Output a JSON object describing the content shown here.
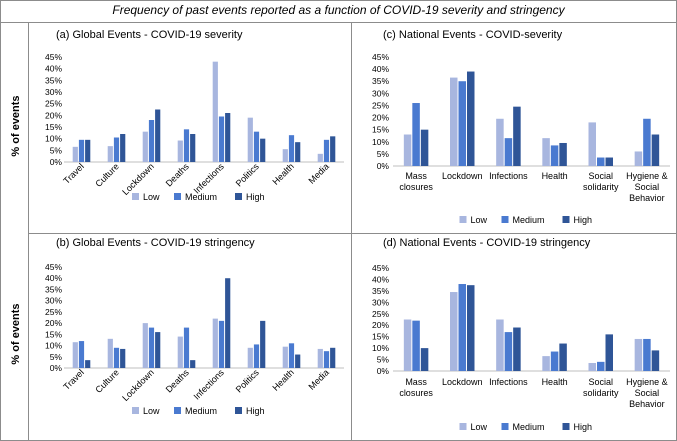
{
  "figure_title": "Frequency of past events reported as a function of COVID-19 severity and stringency",
  "y_axis_label": "% of events",
  "legend": [
    "Low",
    "Medium",
    "High"
  ],
  "colors": {
    "low": "#a8b6df",
    "medium": "#4a7ad0",
    "high": "#2f5597",
    "axis": "#bfbfbf",
    "frame": "#8c8c8c"
  },
  "chart_data": [
    {
      "id": "a",
      "type": "bar",
      "title": "(a)   Global Events - COVID-19 severity",
      "ylabel": "% of events",
      "ylim": [
        0,
        45
      ],
      "yticks": [
        "0%",
        "5%",
        "10%",
        "15%",
        "20%",
        "25%",
        "30%",
        "35%",
        "40%",
        "45%"
      ],
      "categories": [
        "Travel",
        "Culture",
        "Lockdown",
        "Deaths",
        "Infections",
        "Politics",
        "Health",
        "Media"
      ],
      "series": [
        {
          "name": "Low",
          "values": [
            6.5,
            6.8,
            13,
            9.2,
            43,
            19,
            5.5,
            3.5
          ]
        },
        {
          "name": "Medium",
          "values": [
            9.5,
            10.5,
            18,
            14,
            19.5,
            13,
            11.5,
            9.5
          ]
        },
        {
          "name": "High",
          "values": [
            9.5,
            12,
            22.5,
            12,
            21,
            10,
            8.5,
            11
          ]
        }
      ]
    },
    {
      "id": "c",
      "type": "bar",
      "title": "(c)   National Events - COVID-severity",
      "ylabel": "% of events",
      "ylim": [
        0,
        45
      ],
      "yticks": [
        "0%",
        "5%",
        "10%",
        "15%",
        "20%",
        "25%",
        "30%",
        "35%",
        "40%",
        "45%"
      ],
      "categories": [
        [
          "Mass",
          "closures"
        ],
        [
          "Lockdown"
        ],
        [
          "Infections"
        ],
        [
          "Health"
        ],
        [
          "Social",
          "solidarity"
        ],
        [
          "Hygiene &",
          "Social",
          "Behavior"
        ]
      ],
      "series": [
        {
          "name": "Low",
          "values": [
            13,
            36.5,
            19.5,
            11.5,
            18,
            6
          ]
        },
        {
          "name": "Medium",
          "values": [
            26,
            35,
            11.5,
            8.5,
            3.5,
            19.5
          ]
        },
        {
          "name": "High",
          "values": [
            15,
            39,
            24.5,
            9.5,
            3.5,
            13
          ]
        }
      ]
    },
    {
      "id": "b",
      "type": "bar",
      "title": "(b)   Global Events - COVID-19 stringency",
      "ylabel": "% of events",
      "ylim": [
        0,
        45
      ],
      "yticks": [
        "0%",
        "5%",
        "10%",
        "15%",
        "20%",
        "25%",
        "30%",
        "35%",
        "40%",
        "45%"
      ],
      "categories": [
        "Travel",
        "Culture",
        "Lockdown",
        "Deaths",
        "Infections",
        "Politics",
        "Health",
        "Media"
      ],
      "series": [
        {
          "name": "Low",
          "values": [
            11.5,
            13,
            20,
            14,
            22,
            9,
            9.5,
            8.5
          ]
        },
        {
          "name": "Medium",
          "values": [
            12,
            9,
            18,
            18,
            21,
            10.5,
            11,
            7.5
          ]
        },
        {
          "name": "High",
          "values": [
            3.5,
            8.5,
            16,
            3.5,
            40,
            21,
            6,
            9
          ]
        }
      ]
    },
    {
      "id": "d",
      "type": "bar",
      "title": "(d)   National Events - COVID-19 stringency",
      "ylabel": "% of events",
      "ylim": [
        0,
        45
      ],
      "yticks": [
        "0%",
        "5%",
        "10%",
        "15%",
        "20%",
        "25%",
        "30%",
        "35%",
        "40%",
        "45%"
      ],
      "categories": [
        [
          "Mass",
          "closures"
        ],
        [
          "Lockdown"
        ],
        [
          "Infections"
        ],
        [
          "Health"
        ],
        [
          "Social",
          "solidarity"
        ],
        [
          "Hygiene &",
          "Social",
          "Behavior"
        ]
      ],
      "series": [
        {
          "name": "Low",
          "values": [
            22.5,
            34.5,
            22.5,
            6.5,
            3.5,
            14
          ]
        },
        {
          "name": "Medium",
          "values": [
            22,
            38,
            17,
            8.5,
            4,
            14
          ]
        },
        {
          "name": "High",
          "values": [
            10,
            37.5,
            19,
            12,
            16,
            9
          ]
        }
      ]
    }
  ]
}
